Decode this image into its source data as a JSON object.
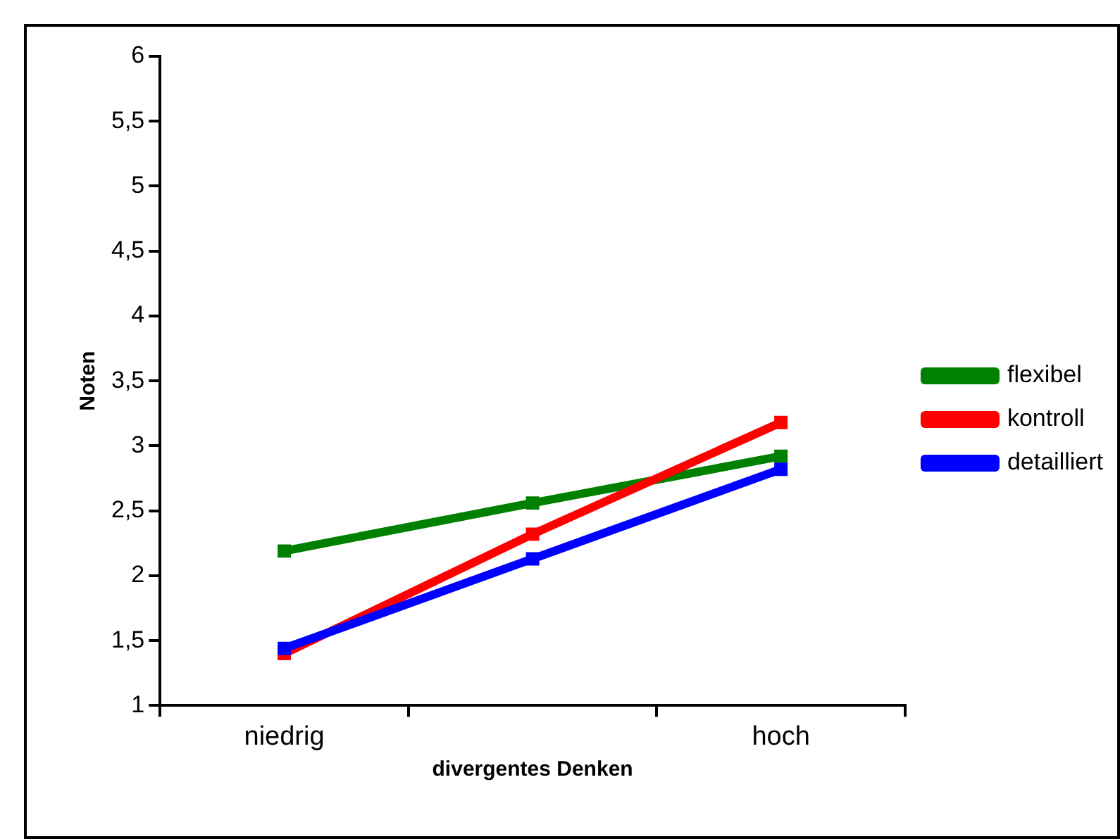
{
  "chart_data": {
    "type": "line",
    "xlabel": "divergentes Denken",
    "ylabel": "Noten",
    "categories": [
      "niedrig",
      null,
      "hoch"
    ],
    "series": [
      {
        "name": "flexibel",
        "color": "#008000",
        "values": [
          2.19,
          2.56,
          2.92
        ]
      },
      {
        "name": "kontroll",
        "color": "#ff0000",
        "values": [
          1.4,
          2.32,
          3.18
        ]
      },
      {
        "name": "detailliert",
        "color": "#0000ff",
        "values": [
          1.44,
          2.13,
          2.82
        ]
      }
    ],
    "ylim": [
      1,
      6
    ],
    "yticks": [
      1,
      {
        "value": 1.5,
        "label": "1,5"
      },
      2,
      {
        "value": 2.5,
        "label": "2,5"
      },
      3,
      {
        "value": 3.5,
        "label": "3,5"
      },
      4,
      {
        "value": 4.5,
        "label": "4,5"
      },
      5,
      {
        "value": 5.5,
        "label": "5,5"
      },
      6
    ],
    "grid": false,
    "legend": "right",
    "marker": "square",
    "line_style": "solid"
  }
}
